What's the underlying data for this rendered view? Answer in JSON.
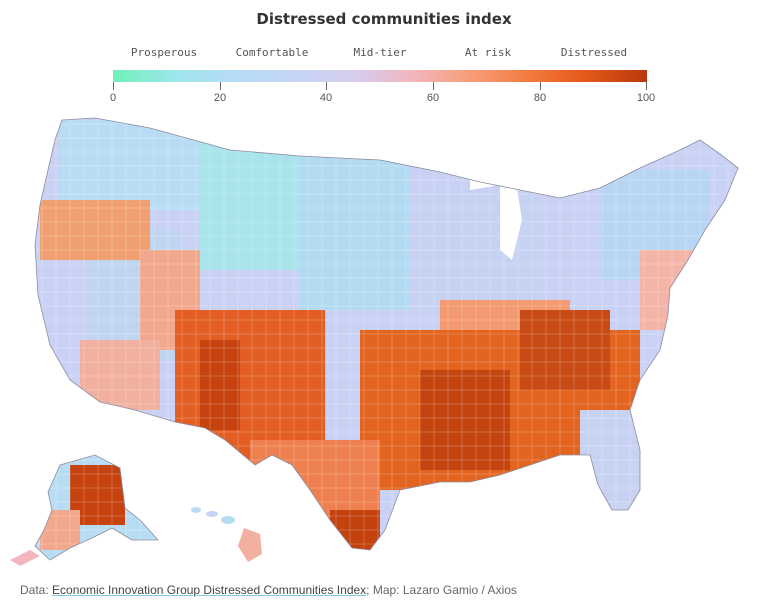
{
  "title": "Distressed communities index",
  "legend": {
    "categories": [
      "Prosperous",
      "Comfortable",
      "Mid-tier",
      "At risk",
      "Distressed"
    ],
    "ticks": [
      "0",
      "20",
      "40",
      "60",
      "80",
      "100"
    ],
    "colors": [
      "#6ff0b8",
      "#b4dcf6",
      "#d0d0f2",
      "#f4b2a6",
      "#e0551c",
      "#b8380c"
    ]
  },
  "source": {
    "prefix": "Data: ",
    "link_text": "Economic Innovation Group Distressed Communities Index",
    "suffix": "; Map: Lazaro Gamio / Axios"
  }
}
